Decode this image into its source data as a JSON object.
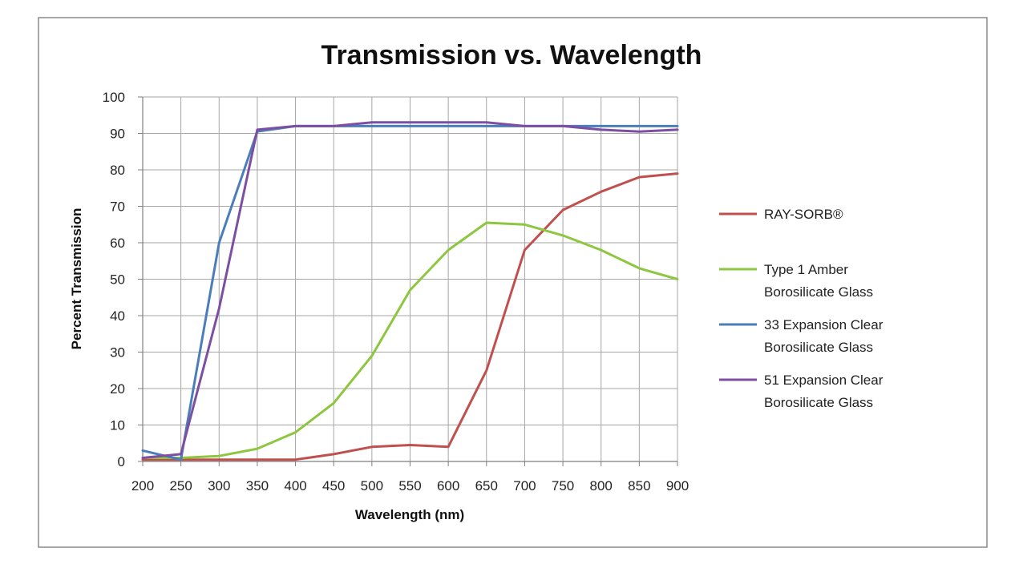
{
  "chart_data": {
    "type": "line",
    "title": "Transmission vs. Wavelength",
    "xlabel": "Wavelength (nm)",
    "ylabel": "Percent Transmission",
    "xlim": [
      200,
      900
    ],
    "ylim": [
      0,
      100
    ],
    "x_ticks": [
      "200",
      "250",
      "300",
      "350",
      "400",
      "450",
      "500",
      "550",
      "600",
      "650",
      "700",
      "750",
      "800",
      "850",
      "900"
    ],
    "y_ticks": [
      "0",
      "10",
      "20",
      "30",
      "40",
      "50",
      "60",
      "70",
      "80",
      "90",
      "100"
    ],
    "grid": true,
    "legend_position": "right",
    "x": [
      200,
      250,
      300,
      350,
      400,
      450,
      500,
      550,
      600,
      650,
      700,
      750,
      800,
      850,
      900
    ],
    "series": [
      {
        "name": "RAY-SORB®",
        "legend_lines": [
          "RAY-SORB®"
        ],
        "color": "#c0504d",
        "values": [
          0.5,
          0.5,
          0.5,
          0.5,
          0.5,
          2,
          4,
          4.5,
          4,
          25,
          58,
          69,
          74,
          78,
          79
        ]
      },
      {
        "name": "Type 1 Amber Borosilicate Glass",
        "legend_lines": [
          "Type 1 Amber",
          "Borosilicate Glass"
        ],
        "color": "#8dc63f",
        "values": [
          1,
          1,
          1.5,
          3.5,
          8,
          16,
          29,
          47,
          58,
          65.5,
          65,
          62,
          58,
          53,
          50
        ]
      },
      {
        "name": "33 Expansion Clear Borosilicate Glass",
        "legend_lines": [
          "33 Expansion Clear",
          "Borosilicate Glass"
        ],
        "color": "#4a7ebb",
        "values": [
          3,
          0.5,
          60,
          90.5,
          92,
          92,
          92,
          92,
          92,
          92,
          92,
          92,
          92,
          92,
          92
        ]
      },
      {
        "name": "51 Expansion Clear Borosilicate Glass",
        "legend_lines": [
          "51 Expansion Clear",
          "Borosilicate Glass"
        ],
        "color": "#7d4fa3",
        "values": [
          1,
          2,
          42,
          91,
          92,
          92,
          93,
          93,
          93,
          93,
          92,
          92,
          91,
          90.5,
          91
        ]
      }
    ]
  }
}
